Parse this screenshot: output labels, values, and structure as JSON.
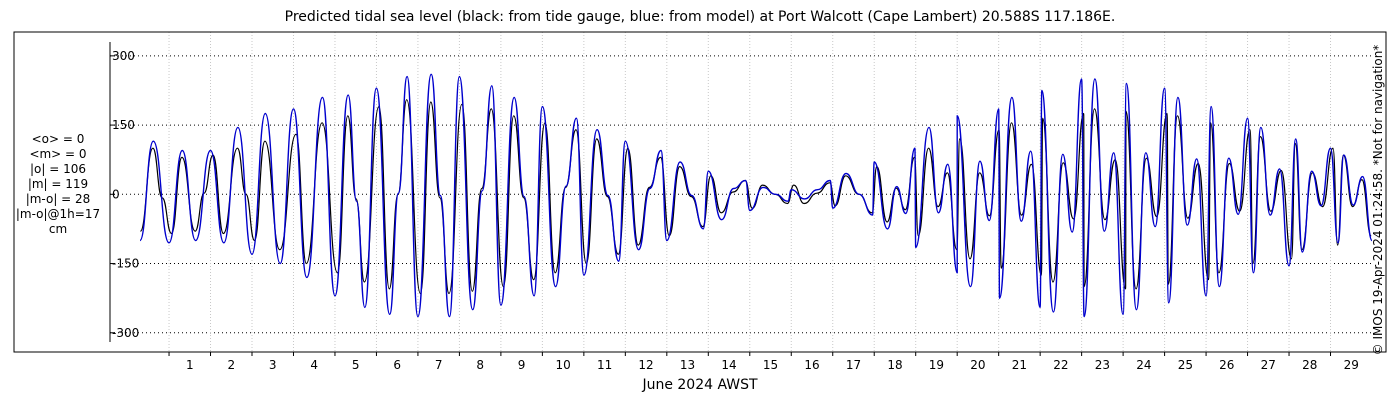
{
  "title": "Predicted tidal sea level (black: from tide gauge, blue: from model) at Port Walcott (Cape Lambert) 20.588S 117.186E.",
  "stats": [
    "<o> = 0",
    "<m> = 0",
    "|o| = 106",
    "|m| = 119",
    "|m-o| = 28",
    "|m-o|@1h=17",
    "cm"
  ],
  "side_note": "© IMOS 19-Apr-2024 01:24:58. *Not for navigation*",
  "colors": {
    "gauge": "#000000",
    "model": "#0000cd",
    "grid": "#000000",
    "minor_grid": "#c8c8c8"
  },
  "chart_data": {
    "type": "line",
    "title": "Predicted tidal sea level (black: from tide gauge, blue: from model) at Port Walcott (Cape Lambert) 20.588S 117.186E.",
    "xlabel": "June 2024 AWST",
    "ylabel": "",
    "units": "cm",
    "xlim": [
      0.3,
      30.0
    ],
    "ylim": [
      -320,
      330
    ],
    "yticks": [
      300,
      150,
      0,
      -150,
      -300
    ],
    "ytick_labels": [
      "300",
      "150",
      "0",
      "-150",
      "-300"
    ],
    "xticks": [
      1,
      2,
      3,
      4,
      5,
      6,
      7,
      8,
      9,
      10,
      11,
      12,
      13,
      14,
      15,
      16,
      17,
      18,
      19,
      20,
      21,
      22,
      23,
      24,
      25,
      26,
      27,
      28,
      29
    ],
    "xtick_labels": [
      "1",
      "2",
      "3",
      "4",
      "5",
      "6",
      "7",
      "8",
      "9",
      "10",
      "11",
      "12",
      "13",
      "14",
      "15",
      "16",
      "17",
      "18",
      "19",
      "20",
      "21",
      "22",
      "23",
      "24",
      "25",
      "26",
      "27",
      "28",
      "29"
    ],
    "grid": true,
    "series": [
      {
        "name": "black: from tide gauge",
        "color": "#000000",
        "x": [
          0.31,
          0.61,
          1.06,
          1.31,
          1.63,
          2.06,
          2.31,
          2.65,
          3.06,
          3.31,
          3.67,
          4.06,
          4.31,
          4.69,
          5.06,
          5.31,
          5.71,
          6.06,
          6.31,
          6.73,
          7.06,
          7.31,
          7.75,
          8.06,
          8.31,
          8.77,
          9.06,
          9.31,
          9.79,
          10.06,
          10.31,
          10.81,
          11.06,
          11.31,
          11.83,
          12.06,
          12.31,
          12.85,
          13.06,
          13.31,
          13.87,
          14.06,
          14.31,
          14.89,
          15.06,
          15.31,
          15.91,
          16.06,
          16.31,
          16.93,
          17.06,
          17.31,
          17.95,
          18.06,
          18.31,
          18.97,
          19.06,
          19.31,
          19.99,
          20.06,
          20.31,
          21.01,
          21.06,
          21.31,
          22.03,
          22.06,
          22.31,
          23.05,
          23.06,
          23.31,
          24.06,
          24.07,
          24.31,
          25.06,
          25.09,
          25.31,
          26.06,
          26.11,
          26.31,
          27.06,
          27.13,
          27.31,
          28.06,
          28.15,
          28.31,
          29.06,
          29.17,
          29.31,
          29.98
        ],
        "y": [
          -80,
          100,
          -85,
          80,
          -80,
          85,
          -85,
          100,
          -100,
          115,
          -120,
          130,
          -150,
          155,
          -170,
          170,
          -190,
          190,
          -205,
          205,
          -215,
          200,
          -215,
          195,
          -210,
          185,
          -200,
          170,
          -185,
          155,
          -170,
          140,
          -150,
          120,
          -130,
          100,
          -110,
          80,
          -90,
          60,
          -70,
          40,
          -40,
          30,
          -30,
          20,
          -20,
          20,
          -20,
          25,
          -25,
          40,
          -40,
          60,
          -60,
          80,
          -90,
          100,
          -120,
          120,
          -140,
          140,
          -160,
          155,
          -175,
          165,
          -190,
          175,
          -200,
          185,
          -205,
          180,
          -205,
          175,
          -195,
          170,
          -185,
          155,
          -170,
          140,
          -150,
          125,
          -140,
          110,
          -120,
          100,
          -110,
          85,
          -90
        ]
      },
      {
        "name": "blue: from model",
        "color": "#0000cd",
        "x": [
          0.3,
          0.62,
          1.0,
          1.32,
          1.64,
          2.0,
          2.32,
          2.66,
          3.0,
          3.32,
          3.68,
          4.0,
          4.32,
          4.7,
          5.0,
          5.32,
          5.72,
          6.0,
          6.32,
          6.74,
          7.0,
          7.32,
          7.76,
          8.0,
          8.32,
          8.78,
          9.0,
          9.32,
          9.8,
          10.0,
          10.32,
          10.82,
          11.0,
          11.32,
          11.84,
          12.0,
          12.32,
          12.86,
          13.0,
          13.32,
          13.88,
          14.0,
          14.32,
          14.9,
          15.0,
          15.32,
          15.92,
          16.0,
          16.32,
          16.94,
          17.0,
          17.32,
          17.96,
          18.0,
          18.32,
          18.98,
          19.0,
          19.32,
          20.0,
          20.0,
          20.32,
          21.0,
          21.02,
          21.32,
          22.0,
          22.04,
          22.32,
          23.0,
          23.06,
          23.32,
          24.0,
          24.08,
          24.32,
          25.0,
          25.1,
          25.32,
          26.0,
          26.12,
          26.32,
          27.0,
          27.14,
          27.32,
          28.0,
          28.16,
          28.32,
          29.0,
          29.18,
          29.32,
          30.0
        ],
        "y": [
          -100,
          115,
          -105,
          95,
          -100,
          95,
          -105,
          145,
          -130,
          175,
          -150,
          185,
          -180,
          210,
          -220,
          215,
          -245,
          230,
          -260,
          255,
          -265,
          260,
          -265,
          255,
          -250,
          235,
          -240,
          210,
          -220,
          190,
          -200,
          165,
          -175,
          140,
          -145,
          115,
          -120,
          95,
          -100,
          70,
          -75,
          50,
          -55,
          30,
          -35,
          15,
          -15,
          10,
          -10,
          30,
          -30,
          45,
          -45,
          70,
          -75,
          100,
          -115,
          145,
          -170,
          170,
          -200,
          185,
          -225,
          210,
          -245,
          225,
          -255,
          250,
          -265,
          250,
          -260,
          240,
          -250,
          230,
          -235,
          210,
          -220,
          190,
          -200,
          165,
          -170,
          145,
          -155,
          120,
          -125,
          100,
          -105,
          85,
          -100
        ]
      }
    ]
  }
}
